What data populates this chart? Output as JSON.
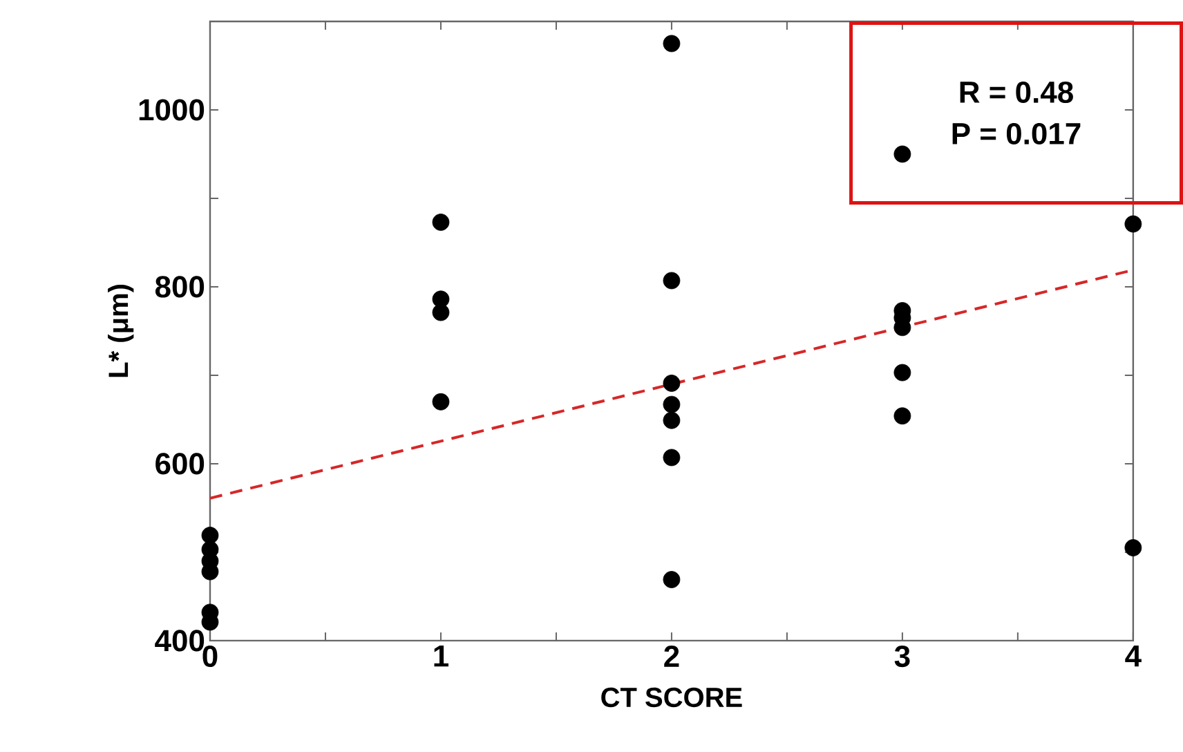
{
  "chart_data": {
    "type": "scatter",
    "xlabel": "CT SCORE",
    "ylabel": "L* (μm)",
    "xlim": [
      0,
      4
    ],
    "ylim": [
      400,
      1100
    ],
    "xticks": [
      0,
      {
        "value": 0.5,
        "label": null
      },
      1,
      {
        "value": 1.5,
        "label": null
      },
      2,
      {
        "value": 2.5,
        "label": null
      },
      3,
      {
        "value": 3.5,
        "label": null
      },
      4
    ],
    "yticks": [
      400,
      {
        "value": 500,
        "label": null
      },
      600,
      {
        "value": 700,
        "label": null
      },
      800,
      {
        "value": 900,
        "label": null
      },
      1000
    ],
    "grid": false,
    "series": [
      {
        "color": "#000000",
        "marker": "circle",
        "x": [
          0,
          0,
          0,
          0,
          0,
          0,
          1,
          1,
          1,
          1,
          2,
          2,
          2,
          2,
          2,
          2,
          2,
          3,
          3,
          3,
          3,
          3,
          3,
          4,
          4
        ],
        "values": [
          519,
          503,
          490,
          478,
          432,
          421,
          873,
          786,
          771,
          670,
          1075,
          807,
          691,
          667,
          649,
          607,
          469,
          950,
          773,
          765,
          754,
          703,
          654,
          871,
          505
        ]
      },
      {
        "type": "line",
        "color": "#d62728",
        "line_style": "dashed",
        "marker": "none",
        "x": [
          0,
          4
        ],
        "values": [
          561,
          819
        ]
      }
    ],
    "annotations": [
      "R = 0.48",
      "P = 0.017"
    ]
  }
}
